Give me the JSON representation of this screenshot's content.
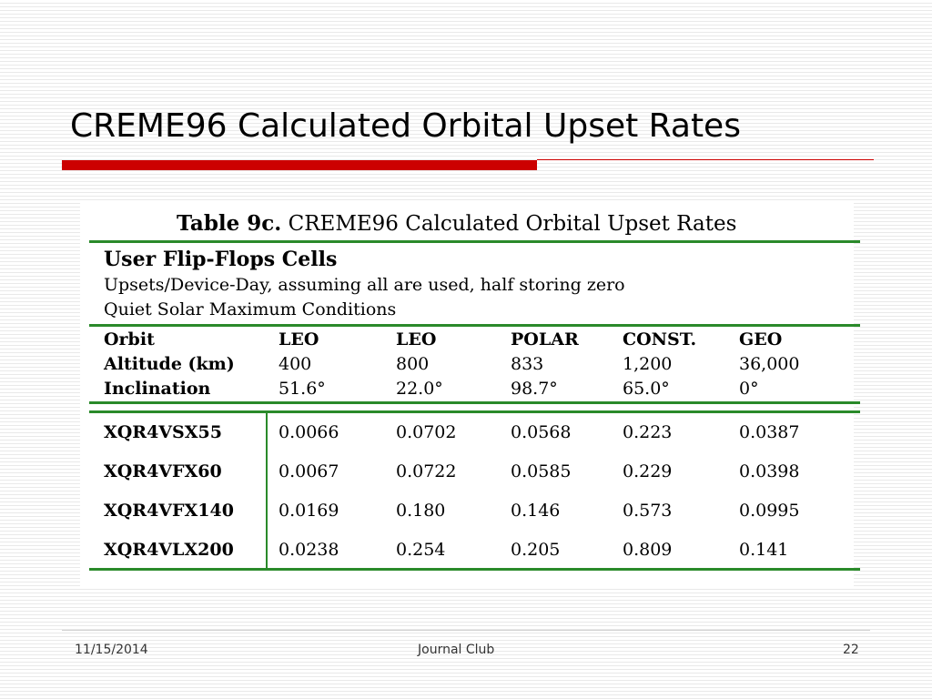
{
  "slide": {
    "title": "CREME96 Calculated Orbital Upset Rates",
    "footer": {
      "date": "11/15/2014",
      "center": "Journal Club",
      "page": "22"
    }
  },
  "table": {
    "caption_label": "Table 9c.",
    "caption_text": "CREME96 Calculated Orbital Upset Rates",
    "section_title": "User Flip-Flops Cells",
    "subtitle_1": "Upsets/Device-Day, assuming all are used, half storing zero",
    "subtitle_2": "Quiet Solar Maximum Conditions",
    "header_rows": [
      {
        "label": "Orbit",
        "values": [
          "LEO",
          "LEO",
          "POLAR",
          "CONST.",
          "GEO"
        ],
        "bold": true
      },
      {
        "label": "Altitude (km)",
        "values": [
          "400",
          "800",
          "833",
          "1,200",
          "36,000"
        ],
        "bold": false
      },
      {
        "label": "Inclination",
        "values": [
          "51.6°",
          "22.0°",
          "98.7°",
          "65.0°",
          "0°"
        ],
        "bold": false
      }
    ],
    "rows": [
      {
        "device": "XQR4VSX55",
        "values": [
          "0.0066",
          "0.0702",
          "0.0568",
          "0.223",
          "0.0387"
        ]
      },
      {
        "device": "XQR4VFX60",
        "values": [
          "0.0067",
          "0.0722",
          "0.0585",
          "0.229",
          "0.0398"
        ]
      },
      {
        "device": "XQR4VFX140",
        "values": [
          "0.0169",
          "0.180",
          "0.146",
          "0.573",
          "0.0995"
        ]
      },
      {
        "device": "XQR4VLX200",
        "values": [
          "0.0238",
          "0.254",
          "0.205",
          "0.809",
          "0.141"
        ]
      }
    ]
  }
}
